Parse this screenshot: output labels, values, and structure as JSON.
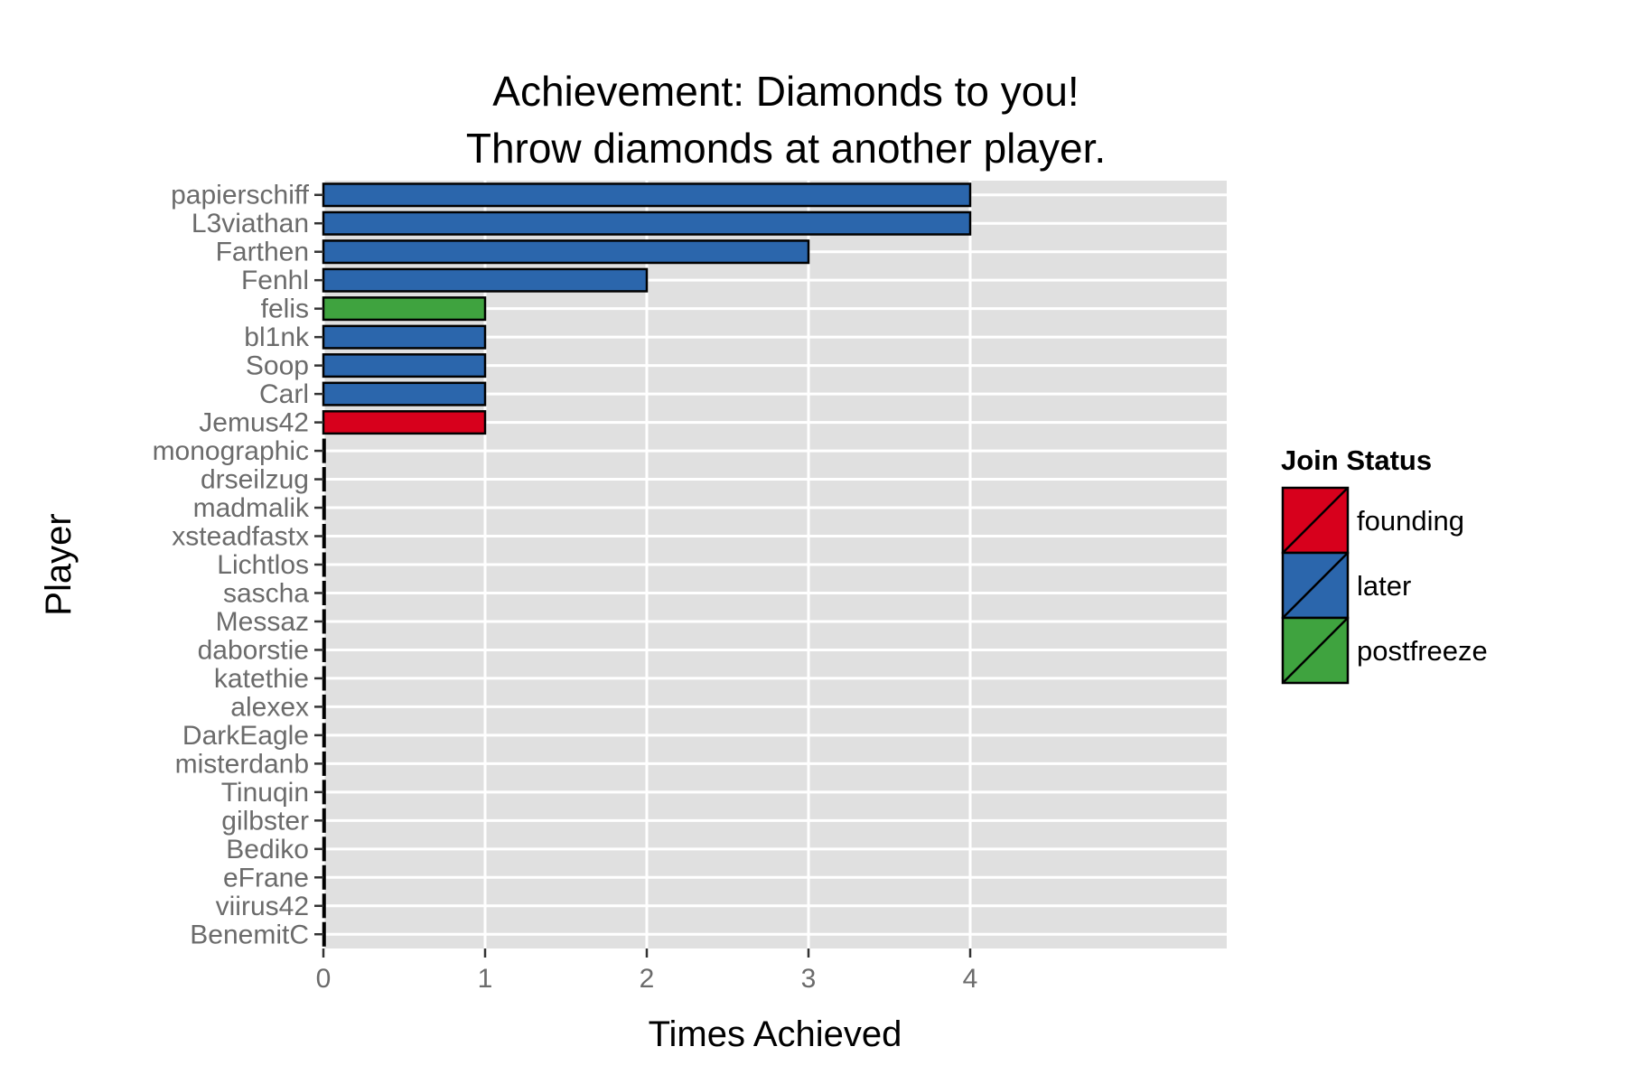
{
  "chart_data": {
    "type": "bar",
    "orientation": "horizontal",
    "title_lines": [
      "Achievement: Diamonds to you!",
      "Throw diamonds at another player."
    ],
    "xlabel": "Times Achieved",
    "ylabel": "Player",
    "xlim": [
      0,
      5.6
    ],
    "x_ticks": [
      0,
      1,
      2,
      3,
      4
    ],
    "grid": true,
    "legend_placement": "right",
    "legend": {
      "title": "Join Status",
      "entries": [
        {
          "key": "founding",
          "label": "founding",
          "color": "#d7001c"
        },
        {
          "key": "later",
          "label": "later",
          "color": "#2b66ac"
        },
        {
          "key": "postfreeze",
          "label": "postfreeze",
          "color": "#3fa33f"
        }
      ]
    },
    "categories": [
      "papierschiff",
      "L3viathan",
      "Farthen",
      "Fenhl",
      "felis",
      "bl1nk",
      "Soop",
      "Carl",
      "Jemus42",
      "monographic",
      "drseilzug",
      "madmalik",
      "xsteadfastx",
      "Lichtlos",
      "sascha",
      "Messaz",
      "daborstie",
      "katethie",
      "alexex",
      "DarkEagle",
      "misterdanb",
      "Tinuqin",
      "gilbster",
      "Bediko",
      "eFrane",
      "viirus42",
      "BenemitC"
    ],
    "values": [
      4,
      4,
      3,
      2,
      1,
      1,
      1,
      1,
      1,
      0,
      0,
      0,
      0,
      0,
      0,
      0,
      0,
      0,
      0,
      0,
      0,
      0,
      0,
      0,
      0,
      0,
      0
    ],
    "status": [
      "later",
      "later",
      "later",
      "later",
      "postfreeze",
      "later",
      "later",
      "later",
      "founding",
      "later",
      "later",
      "later",
      "later",
      "later",
      "later",
      "later",
      "later",
      "later",
      "later",
      "later",
      "later",
      "later",
      "later",
      "later",
      "later",
      "later",
      "later"
    ]
  }
}
